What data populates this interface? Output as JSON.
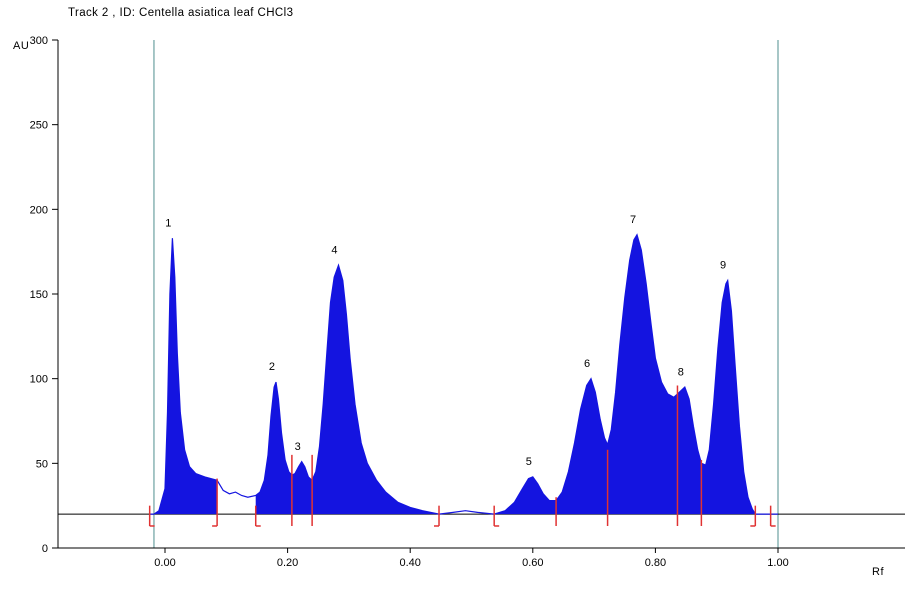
{
  "header": {
    "title": "Track  2 , ID: Centella asiatica leaf CHCl3"
  },
  "chart_data": {
    "type": "area",
    "title": "Track  2 , ID: Centella asiatica leaf CHCl3",
    "xlabel": "Rf",
    "ylabel": "AU",
    "xlim": [
      -0.17,
      1.21
    ],
    "ylim": [
      0,
      300
    ],
    "grid": false,
    "baseline_au": 20,
    "y_ticks": [
      0,
      50,
      100,
      150,
      200,
      250,
      300
    ],
    "x_ticks": [
      {
        "v": 0.0,
        "label": "0.00"
      },
      {
        "v": 0.2,
        "label": "0.20"
      },
      {
        "v": 0.4,
        "label": "0.40"
      },
      {
        "v": 0.6,
        "label": "0.60"
      },
      {
        "v": 0.8,
        "label": "0.80"
      },
      {
        "v": 1.0,
        "label": "1.00"
      }
    ],
    "guide_lines_rf": [
      -0.018,
      1.0
    ],
    "curve": [
      [
        -0.025,
        20
      ],
      [
        -0.018,
        20
      ],
      [
        -0.01,
        22
      ],
      [
        0.0,
        35
      ],
      [
        0.004,
        80
      ],
      [
        0.008,
        150
      ],
      [
        0.012,
        183
      ],
      [
        0.016,
        160
      ],
      [
        0.02,
        115
      ],
      [
        0.025,
        80
      ],
      [
        0.032,
        58
      ],
      [
        0.04,
        48
      ],
      [
        0.05,
        44
      ],
      [
        0.065,
        42
      ],
      [
        0.085,
        40
      ],
      [
        0.095,
        34
      ],
      [
        0.105,
        32
      ],
      [
        0.115,
        33
      ],
      [
        0.125,
        31
      ],
      [
        0.135,
        30
      ],
      [
        0.148,
        31
      ],
      [
        0.155,
        33
      ],
      [
        0.162,
        40
      ],
      [
        0.168,
        55
      ],
      [
        0.173,
        78
      ],
      [
        0.178,
        95
      ],
      [
        0.181,
        98
      ],
      [
        0.185,
        88
      ],
      [
        0.19,
        68
      ],
      [
        0.196,
        52
      ],
      [
        0.202,
        45
      ],
      [
        0.207,
        43
      ],
      [
        0.212,
        44
      ],
      [
        0.218,
        48
      ],
      [
        0.223,
        51
      ],
      [
        0.228,
        48
      ],
      [
        0.234,
        42
      ],
      [
        0.24,
        40
      ],
      [
        0.246,
        45
      ],
      [
        0.252,
        60
      ],
      [
        0.258,
        85
      ],
      [
        0.264,
        115
      ],
      [
        0.27,
        145
      ],
      [
        0.276,
        160
      ],
      [
        0.283,
        167
      ],
      [
        0.29,
        158
      ],
      [
        0.296,
        138
      ],
      [
        0.302,
        112
      ],
      [
        0.31,
        85
      ],
      [
        0.32,
        62
      ],
      [
        0.33,
        50
      ],
      [
        0.345,
        40
      ],
      [
        0.36,
        33
      ],
      [
        0.38,
        27
      ],
      [
        0.4,
        24
      ],
      [
        0.42,
        22
      ],
      [
        0.447,
        20
      ],
      [
        0.47,
        21
      ],
      [
        0.49,
        22
      ],
      [
        0.51,
        21
      ],
      [
        0.537,
        20
      ],
      [
        0.555,
        22
      ],
      [
        0.57,
        27
      ],
      [
        0.583,
        35
      ],
      [
        0.593,
        41
      ],
      [
        0.6,
        42
      ],
      [
        0.608,
        38
      ],
      [
        0.617,
        32
      ],
      [
        0.627,
        28
      ],
      [
        0.638,
        28
      ],
      [
        0.648,
        33
      ],
      [
        0.658,
        45
      ],
      [
        0.668,
        62
      ],
      [
        0.678,
        82
      ],
      [
        0.688,
        96
      ],
      [
        0.695,
        100
      ],
      [
        0.702,
        92
      ],
      [
        0.71,
        76
      ],
      [
        0.717,
        65
      ],
      [
        0.722,
        61
      ],
      [
        0.728,
        70
      ],
      [
        0.735,
        92
      ],
      [
        0.742,
        120
      ],
      [
        0.75,
        148
      ],
      [
        0.758,
        170
      ],
      [
        0.765,
        182
      ],
      [
        0.77,
        185
      ],
      [
        0.777,
        176
      ],
      [
        0.785,
        156
      ],
      [
        0.793,
        132
      ],
      [
        0.8,
        112
      ],
      [
        0.81,
        98
      ],
      [
        0.82,
        91
      ],
      [
        0.83,
        89
      ],
      [
        0.836,
        91
      ],
      [
        0.842,
        93
      ],
      [
        0.848,
        95
      ],
      [
        0.855,
        88
      ],
      [
        0.862,
        72
      ],
      [
        0.869,
        58
      ],
      [
        0.875,
        50
      ],
      [
        0.882,
        49
      ],
      [
        0.888,
        58
      ],
      [
        0.895,
        85
      ],
      [
        0.902,
        118
      ],
      [
        0.909,
        145
      ],
      [
        0.915,
        156
      ],
      [
        0.918,
        158
      ],
      [
        0.924,
        140
      ],
      [
        0.93,
        108
      ],
      [
        0.937,
        72
      ],
      [
        0.944,
        45
      ],
      [
        0.951,
        30
      ],
      [
        0.958,
        23
      ],
      [
        0.963,
        20
      ],
      [
        0.98,
        20
      ],
      [
        1.0,
        20
      ]
    ],
    "fill_regions": [
      {
        "from": -0.025,
        "to": 0.085
      },
      {
        "from": 0.148,
        "to": 0.447
      },
      {
        "from": 0.537,
        "to": 0.963
      }
    ],
    "peaks": [
      {
        "num": "1",
        "rf": 0.012,
        "apex_au": 183,
        "label_au": 190
      },
      {
        "num": "2",
        "rf": 0.181,
        "apex_au": 98,
        "label_au": 105
      },
      {
        "num": "3",
        "rf": 0.223,
        "apex_au": 51,
        "label_au": 58
      },
      {
        "num": "4",
        "rf": 0.283,
        "apex_au": 167,
        "label_au": 174
      },
      {
        "num": "5",
        "rf": 0.6,
        "apex_au": 42,
        "label_au": 49
      },
      {
        "num": "6",
        "rf": 0.695,
        "apex_au": 100,
        "label_au": 107
      },
      {
        "num": "7",
        "rf": 0.77,
        "apex_au": 185,
        "label_au": 192
      },
      {
        "num": "8",
        "rf": 0.848,
        "apex_au": 95,
        "label_au": 102
      },
      {
        "num": "9",
        "rf": 0.917,
        "apex_au": 158,
        "label_au": 165
      }
    ],
    "integration_markers": [
      {
        "rf": -0.025,
        "top_au": 25,
        "foot": "right"
      },
      {
        "rf": 0.085,
        "top_au": 41,
        "foot": "left"
      },
      {
        "rf": 0.148,
        "top_au": 25,
        "foot": "right"
      },
      {
        "rf": 0.207,
        "top_au": 55,
        "foot": "none"
      },
      {
        "rf": 0.24,
        "top_au": 55,
        "foot": "none"
      },
      {
        "rf": 0.447,
        "top_au": 25,
        "foot": "left"
      },
      {
        "rf": 0.537,
        "top_au": 25,
        "foot": "right"
      },
      {
        "rf": 0.638,
        "top_au": 30,
        "foot": "none"
      },
      {
        "rf": 0.722,
        "top_au": 58,
        "foot": "none"
      },
      {
        "rf": 0.836,
        "top_au": 96,
        "foot": "none"
      },
      {
        "rf": 0.875,
        "top_au": 52,
        "foot": "none"
      },
      {
        "rf": 0.963,
        "top_au": 25,
        "foot": "left"
      },
      {
        "rf": 0.988,
        "top_au": 25,
        "foot": "right"
      }
    ],
    "colors": {
      "peak_fill": "#1414e0",
      "curve_line": "#1414e0",
      "marker_red": "#e03232",
      "guide_teal": "#4f8f8f",
      "axis_black": "#000000"
    }
  }
}
